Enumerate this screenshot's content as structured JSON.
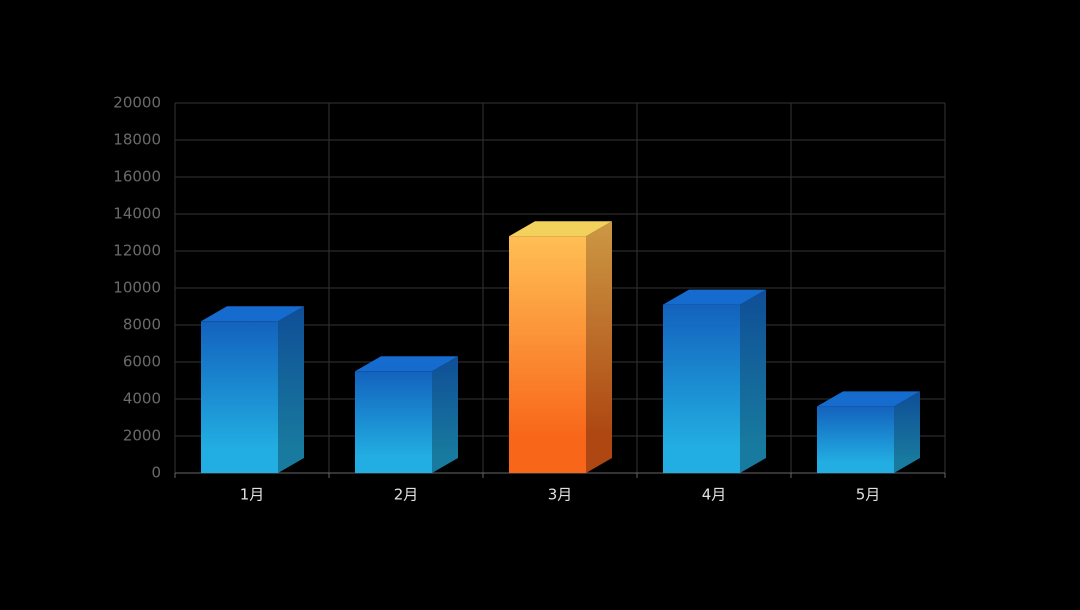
{
  "chart_data": {
    "type": "bar3d",
    "categories": [
      "1月",
      "2月",
      "3月",
      "4月",
      "5月"
    ],
    "values": [
      8200,
      5500,
      12800,
      9100,
      3600
    ],
    "colors": [
      [
        "#1362bd",
        "#22aee2"
      ],
      [
        "#1362bd",
        "#22aee2"
      ],
      [
        "#ffbf55",
        "#f8661a"
      ],
      [
        "#1362bd",
        "#22aee2"
      ],
      [
        "#1362bd",
        "#22aee2"
      ]
    ],
    "ylim": [
      0,
      20000
    ],
    "yticks": [
      0,
      2000,
      4000,
      6000,
      8000,
      10000,
      12000,
      14000,
      16000,
      18000,
      20000
    ],
    "grid": true
  }
}
